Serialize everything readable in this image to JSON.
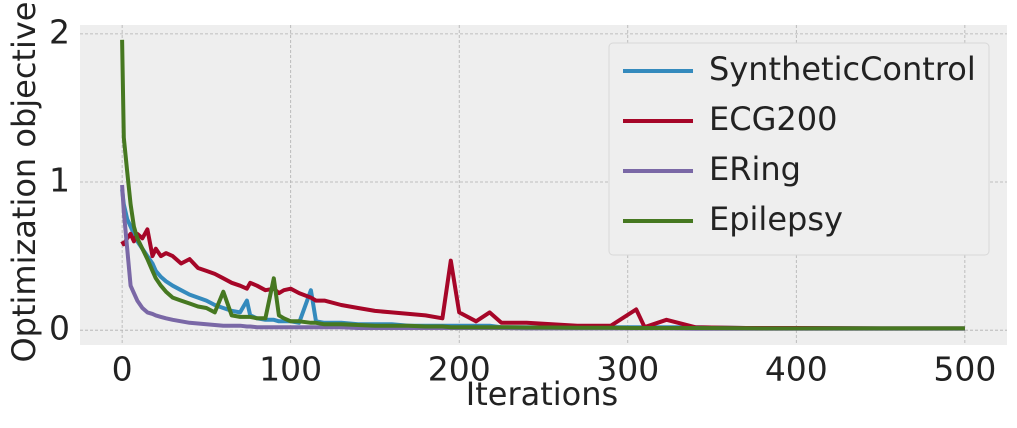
{
  "chart_data": {
    "type": "line",
    "xlabel": "Iterations",
    "ylabel": "Optimization objective",
    "x": [
      0,
      1,
      3,
      5,
      7,
      9,
      12,
      15,
      18,
      20,
      23,
      26,
      30,
      35,
      40,
      45,
      50,
      55,
      60,
      65,
      70,
      74,
      76,
      80,
      85,
      90,
      93,
      96,
      100,
      105,
      112,
      115,
      120,
      130,
      140,
      150,
      160,
      170,
      180,
      190,
      195,
      200,
      210,
      218,
      225,
      240,
      255,
      270,
      290,
      305,
      310,
      323,
      340,
      370,
      400,
      450,
      500
    ],
    "series": [
      {
        "name": "SyntheticControl",
        "color": "#348abd",
        "values": [
          0.95,
          0.85,
          0.75,
          0.7,
          0.65,
          0.6,
          0.55,
          0.5,
          0.45,
          0.4,
          0.36,
          0.33,
          0.3,
          0.27,
          0.24,
          0.22,
          0.2,
          0.17,
          0.15,
          0.13,
          0.12,
          0.2,
          0.1,
          0.08,
          0.07,
          0.07,
          0.06,
          0.06,
          0.06,
          0.05,
          0.27,
          0.06,
          0.05,
          0.05,
          0.04,
          0.04,
          0.04,
          0.03,
          0.03,
          0.03,
          0.03,
          0.03,
          0.03,
          0.03,
          0.02,
          0.02,
          0.02,
          0.02,
          0.02,
          0.02,
          0.02,
          0.02,
          0.02,
          0.015,
          0.015,
          0.012,
          0.012
        ]
      },
      {
        "name": "ECG200",
        "color": "#a60628",
        "values": [
          0.6,
          0.58,
          0.62,
          0.65,
          0.6,
          0.65,
          0.62,
          0.68,
          0.5,
          0.55,
          0.5,
          0.52,
          0.5,
          0.45,
          0.48,
          0.42,
          0.4,
          0.38,
          0.35,
          0.32,
          0.3,
          0.28,
          0.32,
          0.3,
          0.27,
          0.28,
          0.25,
          0.27,
          0.28,
          0.25,
          0.22,
          0.2,
          0.2,
          0.17,
          0.15,
          0.13,
          0.12,
          0.11,
          0.1,
          0.08,
          0.47,
          0.12,
          0.06,
          0.12,
          0.05,
          0.05,
          0.04,
          0.03,
          0.03,
          0.14,
          0.02,
          0.07,
          0.02,
          0.015,
          0.015,
          0.012,
          0.012
        ]
      },
      {
        "name": "ERing",
        "color": "#7a68a6",
        "values": [
          0.98,
          0.8,
          0.55,
          0.3,
          0.25,
          0.2,
          0.15,
          0.12,
          0.11,
          0.1,
          0.09,
          0.08,
          0.07,
          0.06,
          0.05,
          0.045,
          0.04,
          0.035,
          0.03,
          0.03,
          0.03,
          0.025,
          0.025,
          0.02,
          0.02,
          0.02,
          0.02,
          0.02,
          0.02,
          0.02,
          0.02,
          0.02,
          0.02,
          0.02,
          0.015,
          0.015,
          0.015,
          0.015,
          0.015,
          0.015,
          0.015,
          0.015,
          0.015,
          0.015,
          0.015,
          0.012,
          0.012,
          0.012,
          0.012,
          0.012,
          0.012,
          0.012,
          0.01,
          0.01,
          0.01,
          0.01,
          0.01
        ]
      },
      {
        "name": "Epilepsy",
        "color": "#467821",
        "values": [
          1.96,
          1.3,
          1.07,
          0.85,
          0.7,
          0.62,
          0.55,
          0.48,
          0.4,
          0.35,
          0.3,
          0.26,
          0.22,
          0.2,
          0.18,
          0.16,
          0.15,
          0.12,
          0.26,
          0.1,
          0.09,
          0.09,
          0.09,
          0.08,
          0.08,
          0.35,
          0.1,
          0.08,
          0.06,
          0.06,
          0.05,
          0.05,
          0.04,
          0.04,
          0.035,
          0.03,
          0.03,
          0.03,
          0.025,
          0.025,
          0.02,
          0.02,
          0.02,
          0.02,
          0.02,
          0.018,
          0.018,
          0.016,
          0.016,
          0.015,
          0.015,
          0.015,
          0.015,
          0.013,
          0.012,
          0.012,
          0.012
        ]
      }
    ],
    "xlim": [
      -25,
      525
    ],
    "xticks": [
      0,
      100,
      200,
      300,
      400,
      500
    ],
    "ylim": [
      -0.1,
      2.06
    ],
    "yticks": [
      0,
      1,
      2
    ],
    "grid": true,
    "legend": "upper right"
  }
}
